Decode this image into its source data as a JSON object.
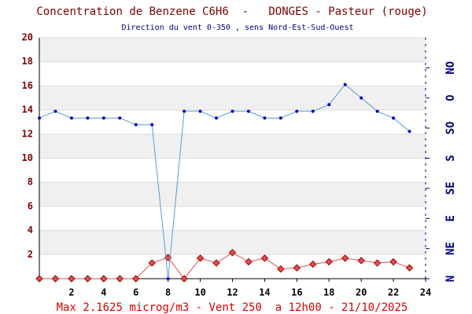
{
  "chart_data": {
    "type": "line",
    "title": "Concentration de Benzene C6H6  -   DONGES - Pasteur (rouge)",
    "subtitle": "Direction du vent 0-350 , sens Nord-Est-Sud-Ouest",
    "footer": "Max 2.1625 microg/m3 - Vent 250  a 12h00 - 21/10/2025",
    "x": [
      0,
      1,
      2,
      3,
      4,
      5,
      6,
      7,
      8,
      9,
      10,
      11,
      12,
      13,
      14,
      15,
      16,
      17,
      18,
      19,
      20,
      21,
      22,
      23
    ],
    "xlim": [
      0,
      24
    ],
    "xticks": [
      2,
      4,
      6,
      8,
      10,
      12,
      14,
      16,
      18,
      20,
      22,
      24
    ],
    "ylim": [
      0,
      20
    ],
    "yticks": [
      2,
      4,
      6,
      8,
      10,
      12,
      14,
      16,
      18,
      20
    ],
    "y2lim": [
      0,
      360
    ],
    "y2ticks": [
      {
        "value": 0,
        "label": "N"
      },
      {
        "value": 45,
        "label": "NE"
      },
      {
        "value": 90,
        "label": "E"
      },
      {
        "value": 135,
        "label": "SE"
      },
      {
        "value": 180,
        "label": "S"
      },
      {
        "value": 225,
        "label": "SO"
      },
      {
        "value": 270,
        "label": "O"
      },
      {
        "value": 315,
        "label": "NO"
      }
    ],
    "grid": true,
    "series": [
      {
        "name": "Benzene",
        "color": "#e05050",
        "values": [
          0,
          0,
          0,
          0,
          0,
          0,
          0,
          1.3,
          1.75,
          0,
          1.7,
          1.3,
          2.1625,
          1.4,
          1.7,
          0.8,
          0.9,
          1.2,
          1.4,
          1.7,
          1.5,
          1.3,
          1.4,
          0.9
        ]
      },
      {
        "name": "Vent",
        "color": "#5b9bd5",
        "axis": "y2",
        "values": [
          240,
          250,
          240,
          240,
          240,
          240,
          230,
          230,
          0,
          250,
          250,
          240,
          250,
          250,
          240,
          240,
          250,
          250,
          260,
          290,
          270,
          250,
          240,
          220
        ]
      }
    ]
  }
}
